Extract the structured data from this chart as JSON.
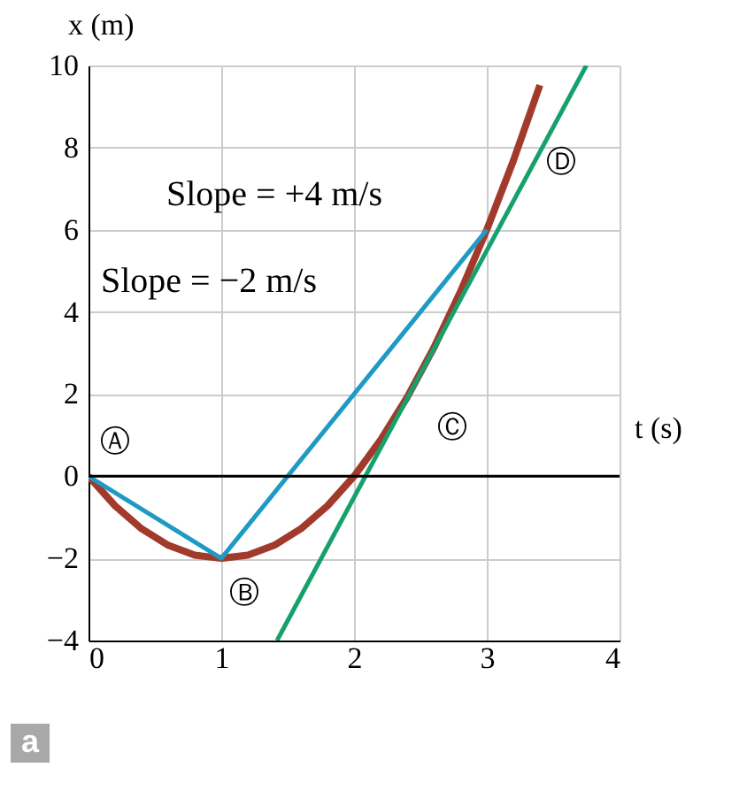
{
  "chart_data": {
    "type": "line",
    "xlabel": "t (s)",
    "ylabel": "x (m)",
    "xlim": [
      0,
      4
    ],
    "ylim": [
      -4,
      10
    ],
    "xticks": [
      0,
      1,
      2,
      3,
      4
    ],
    "yticks": [
      -4,
      -2,
      0,
      2,
      4,
      6,
      8,
      10
    ],
    "grid": true,
    "series": [
      {
        "color": "#a23a2c",
        "x": [
          0,
          0.2,
          0.4,
          0.6,
          0.8,
          1,
          1.2,
          1.4,
          1.6,
          1.8,
          2,
          2.2,
          2.4,
          2.6,
          2.8,
          3,
          3.2,
          3.4
        ],
        "values": [
          0,
          -0.72,
          -1.28,
          -1.68,
          -1.92,
          -2,
          -1.92,
          -1.68,
          -1.28,
          -0.72,
          0,
          0.88,
          1.92,
          3.12,
          4.48,
          6,
          7.68,
          9.52
        ]
      },
      {
        "color": "#1f9ac4",
        "x": [
          0,
          1,
          3
        ],
        "values": [
          0,
          -2,
          6
        ]
      },
      {
        "color": "#16a06c",
        "x": [
          1.42,
          3.75
        ],
        "values": [
          -4,
          10
        ]
      }
    ],
    "ref_lines": [
      {
        "axis": "y",
        "value": 0
      }
    ],
    "annotations": [
      "Slope = +4 m/s",
      "Slope = −2 m/s",
      {
        "text": "Ⓐ",
        "x": 0,
        "y": 0
      },
      {
        "text": "Ⓑ",
        "x": 1,
        "y": -2
      },
      {
        "text": "Ⓒ",
        "x": 2.5,
        "y": 2.5
      },
      {
        "text": "Ⓓ",
        "x": 3,
        "y": 6
      },
      "a"
    ]
  }
}
